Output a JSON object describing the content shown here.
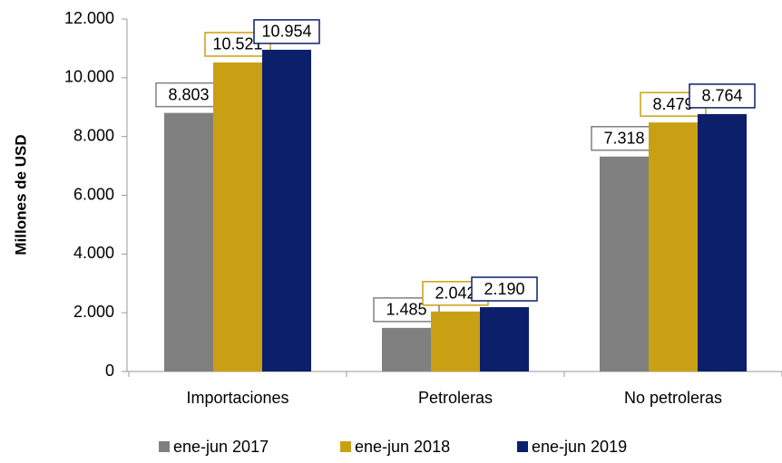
{
  "chart_data": {
    "type": "bar",
    "y_label": "Millones de USD",
    "categories": [
      "Importaciones",
      "Petroleras",
      "No petroleras"
    ],
    "series": [
      {
        "name": "ene-jun 2017",
        "color": "#808080",
        "values": [
          8803,
          1485,
          7318
        ],
        "value_labels": [
          "8.803",
          "1.485",
          "7.318"
        ]
      },
      {
        "name": "ene-jun 2018",
        "color": "#c9a013",
        "values": [
          10521,
          2042,
          8479
        ],
        "value_labels": [
          "10.521",
          "2.042",
          "8.479"
        ]
      },
      {
        "name": "ene-jun 2019",
        "color": "#0b1f6b",
        "values": [
          10954,
          2190,
          8764
        ],
        "value_labels": [
          "10.954",
          "2.190",
          "8.764"
        ]
      }
    ],
    "ylim": [
      0,
      12000
    ],
    "yticks": [
      0,
      {
        "value": 2000,
        "label": "2.000"
      },
      {
        "value": 4000,
        "label": "4.000"
      },
      {
        "value": 6000,
        "label": "6.000"
      },
      {
        "value": 8000,
        "label": "8.000"
      },
      {
        "value": 10000,
        "label": "10.000"
      },
      {
        "value": 12000,
        "label": "12.000"
      }
    ],
    "legend": "bottom"
  }
}
